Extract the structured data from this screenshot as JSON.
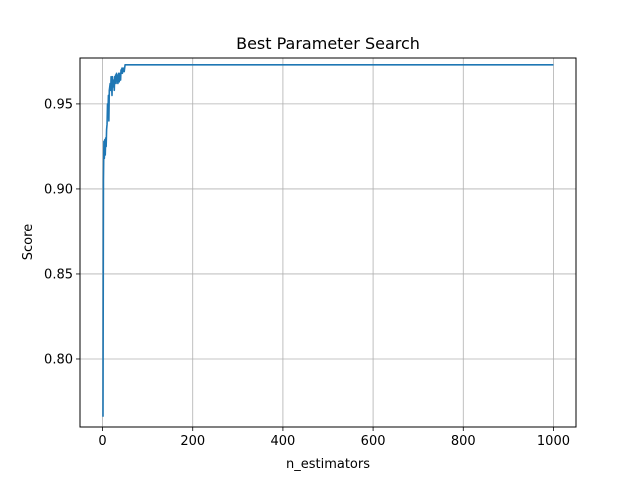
{
  "chart_data": {
    "type": "line",
    "title": "Best Parameter Search",
    "xlabel": "n_estimators",
    "ylabel": "Score",
    "xlim": [
      -50,
      1050
    ],
    "ylim": [
      0.76,
      0.977
    ],
    "x_ticks": [
      0,
      200,
      400,
      600,
      800,
      1000
    ],
    "x_tick_labels": [
      "0",
      "200",
      "400",
      "600",
      "800",
      "1000"
    ],
    "y_ticks": [
      0.8,
      0.85,
      0.9,
      0.95
    ],
    "y_tick_labels": [
      "0.80",
      "0.85",
      "0.90",
      "0.95"
    ],
    "grid": true,
    "legend": "none",
    "colors": {
      "line": "#1f77b4",
      "grid": "#b0b0b0",
      "axes": "#000000"
    },
    "series": [
      {
        "x": [
          1,
          2,
          3,
          4,
          5,
          6,
          7,
          8,
          9,
          10,
          11,
          12,
          13,
          14,
          15,
          16,
          17,
          18,
          19,
          20,
          21,
          22,
          23,
          24,
          25,
          26,
          27,
          28,
          29,
          30,
          31,
          32,
          33,
          34,
          35,
          36,
          37,
          38,
          39,
          40,
          41,
          42,
          43,
          44,
          45,
          46,
          47,
          48,
          49,
          50,
          52,
          55,
          60,
          70,
          80,
          100,
          200,
          400,
          600,
          800,
          1000
        ],
        "y": [
          0.766,
          0.905,
          0.928,
          0.918,
          0.929,
          0.92,
          0.93,
          0.925,
          0.935,
          0.938,
          0.95,
          0.944,
          0.955,
          0.94,
          0.958,
          0.96,
          0.962,
          0.958,
          0.966,
          0.962,
          0.955,
          0.966,
          0.96,
          0.964,
          0.962,
          0.958,
          0.966,
          0.964,
          0.967,
          0.962,
          0.968,
          0.965,
          0.967,
          0.962,
          0.965,
          0.968,
          0.963,
          0.966,
          0.968,
          0.964,
          0.97,
          0.968,
          0.971,
          0.968,
          0.971,
          0.969,
          0.971,
          0.969,
          0.971,
          0.973,
          0.973,
          0.973,
          0.973,
          0.973,
          0.973,
          0.973,
          0.973,
          0.973,
          0.973,
          0.973,
          0.973
        ]
      }
    ]
  }
}
